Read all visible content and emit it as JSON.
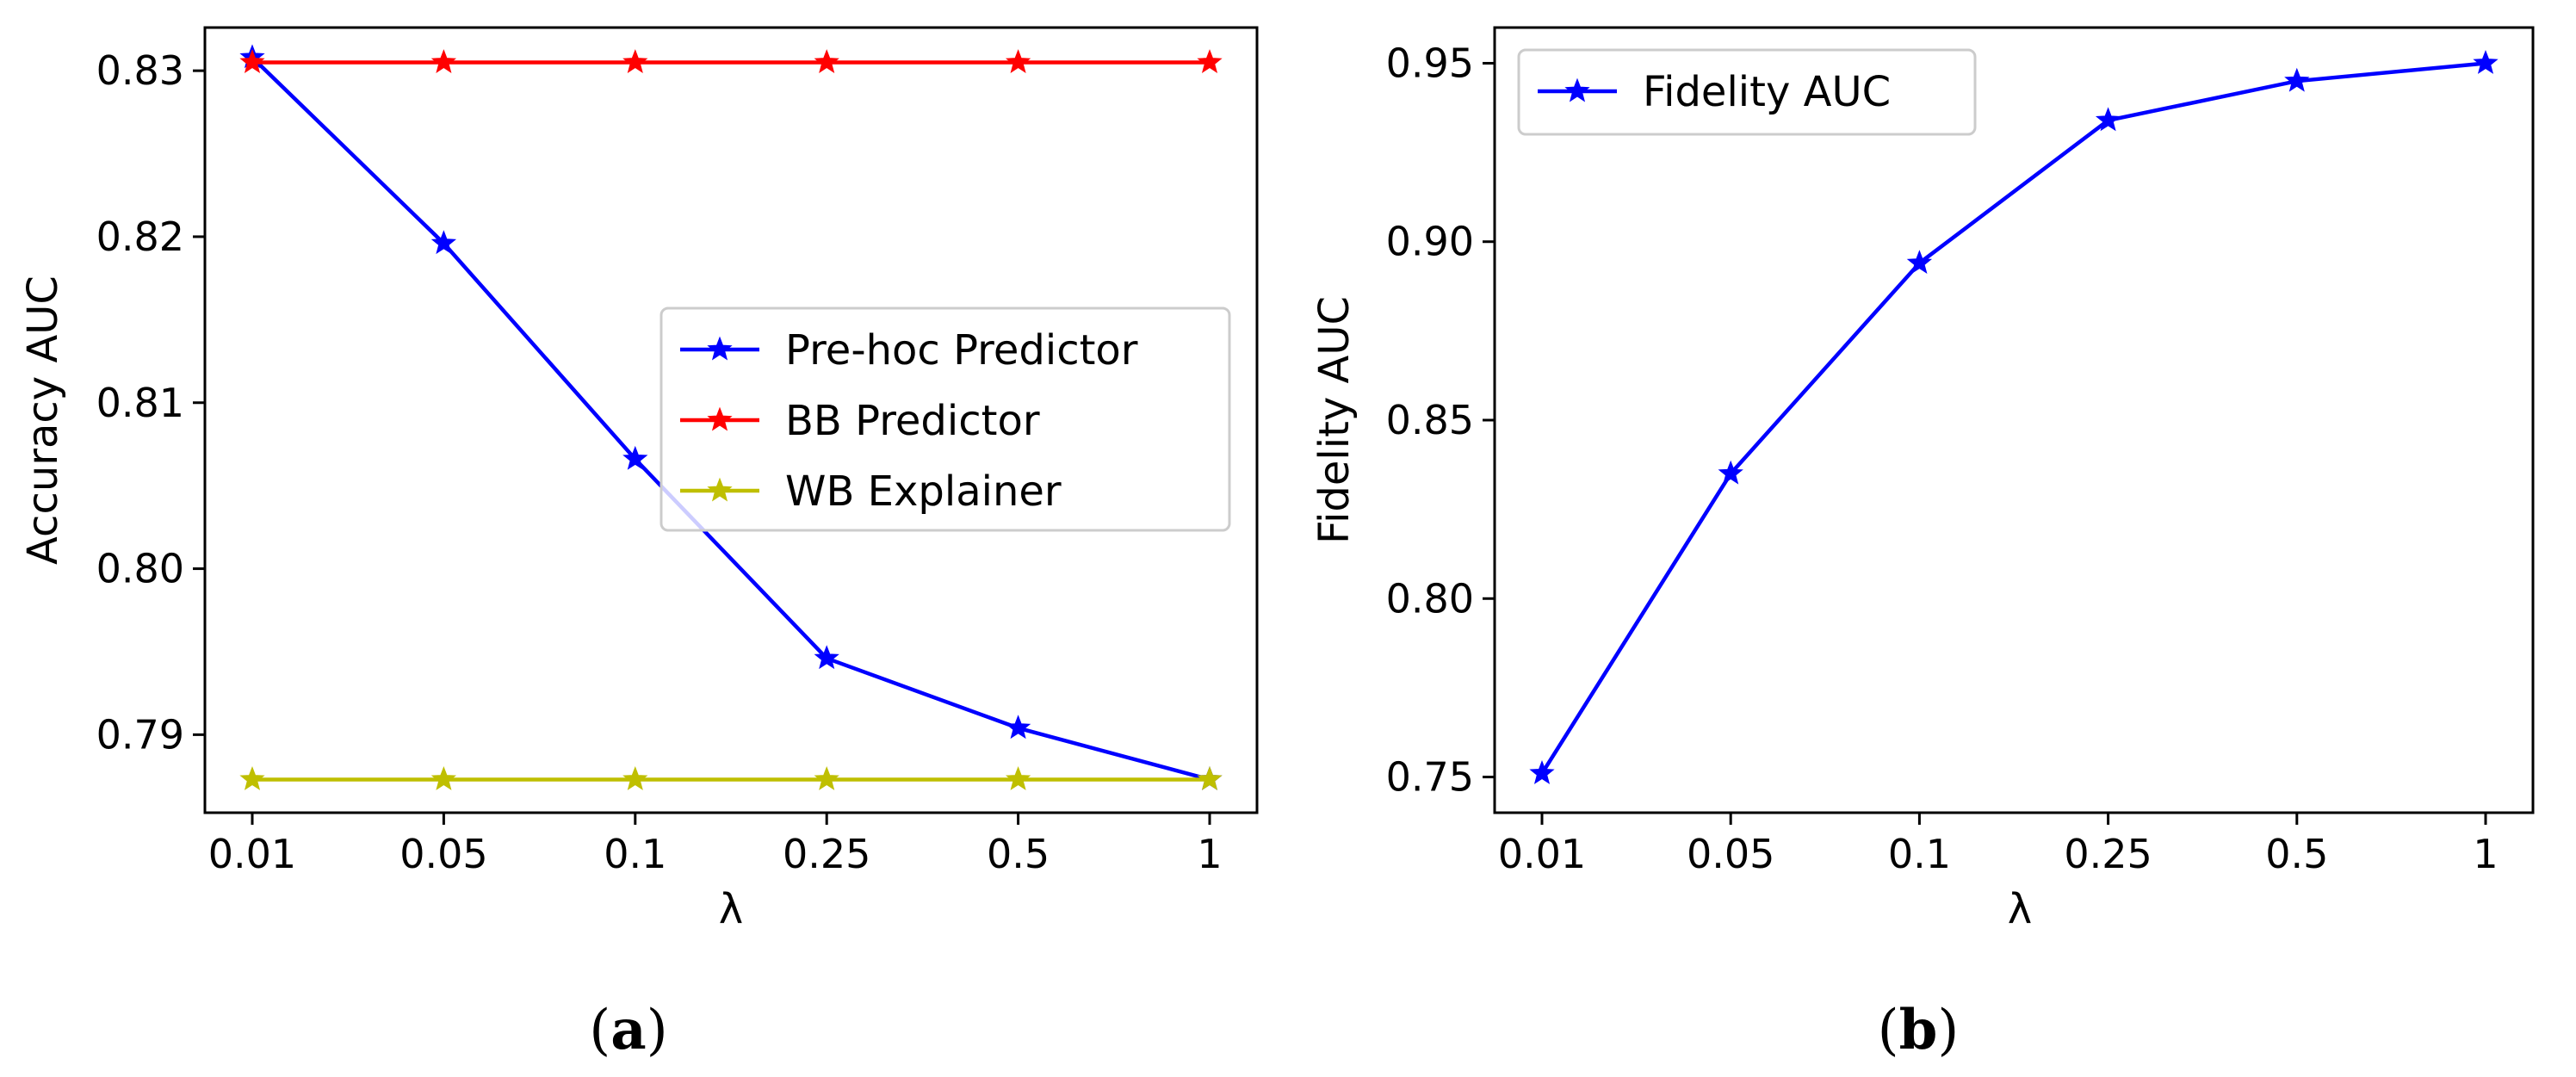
{
  "chart_data": [
    {
      "type": "line",
      "panel": "a",
      "caption": {
        "open": "(",
        "letter": "a",
        "close": ")"
      },
      "categories": [
        "0.01",
        "0.05",
        "0.1",
        "0.25",
        "0.5",
        "1"
      ],
      "xlabel": "λ",
      "ylabel": "Accuracy AUC",
      "ylim": [
        0.7853,
        0.8326
      ],
      "yticks": [
        0.79,
        0.8,
        0.81,
        0.82,
        0.83
      ],
      "ytick_labels": [
        "0.79",
        "0.80",
        "0.81",
        "0.82",
        "0.83"
      ],
      "legend_position": "center-right",
      "series": [
        {
          "name": "Pre-hoc Predictor",
          "color": "#0000ff",
          "marker": "star",
          "values": [
            0.8308,
            0.8196,
            0.8066,
            0.7946,
            0.7904,
            0.7873
          ]
        },
        {
          "name": "BB Predictor",
          "color": "#ff0000",
          "marker": "star",
          "values": [
            0.8305,
            0.8305,
            0.8305,
            0.8305,
            0.8305,
            0.8305
          ]
        },
        {
          "name": "WB Explainer",
          "color": "#bfbf00",
          "marker": "star",
          "values": [
            0.7873,
            0.7873,
            0.7873,
            0.7873,
            0.7873,
            0.7873
          ]
        }
      ]
    },
    {
      "type": "line",
      "panel": "b",
      "caption": {
        "open": "(",
        "letter": "b",
        "close": ")"
      },
      "categories": [
        "0.01",
        "0.05",
        "0.1",
        "0.25",
        "0.5",
        "1"
      ],
      "xlabel": "λ",
      "ylabel": "Fidelity AUC",
      "ylim": [
        0.74,
        0.96
      ],
      "yticks": [
        0.75,
        0.8,
        0.85,
        0.9,
        0.95
      ],
      "ytick_labels": [
        "0.75",
        "0.80",
        "0.85",
        "0.90",
        "0.95"
      ],
      "legend_position": "top-left",
      "series": [
        {
          "name": "Fidelity AUC",
          "color": "#0000ff",
          "marker": "star",
          "values": [
            0.751,
            0.835,
            0.894,
            0.934,
            0.945,
            0.95
          ]
        }
      ]
    }
  ]
}
